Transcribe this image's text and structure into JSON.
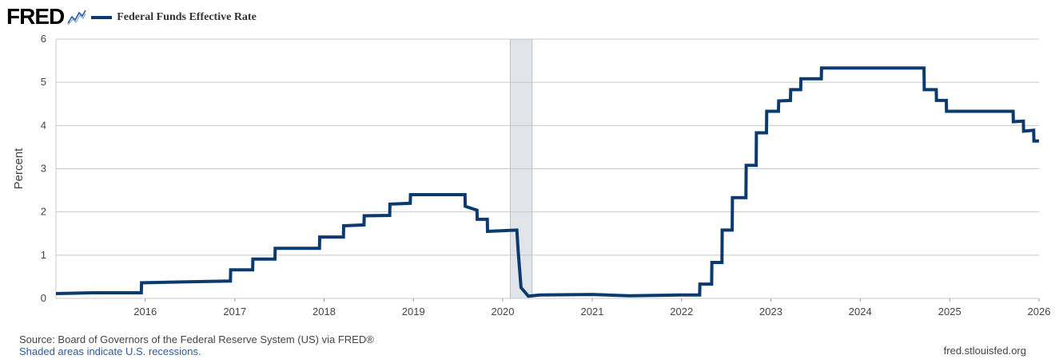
{
  "header": {
    "logo": "FRED",
    "logo_icon": "line-chart-icon"
  },
  "colors": {
    "series": "#0b3b6e",
    "grid": "#c8c8c8",
    "recession": "#e1e5e9",
    "axis_text": "#444444"
  },
  "chart_data": {
    "type": "line",
    "title": "",
    "xlabel": "",
    "ylabel": "Percent",
    "xlim": [
      "2015-01-01",
      "2026-01-01"
    ],
    "ylim": [
      0,
      6
    ],
    "yticks": [
      0,
      1,
      2,
      3,
      4,
      5,
      6
    ],
    "xticks": [
      "2016",
      "2017",
      "2018",
      "2019",
      "2020",
      "2021",
      "2022",
      "2023",
      "2024",
      "2025",
      "2026"
    ],
    "grid": true,
    "legend": "top-left",
    "recessions": [
      {
        "start": "2020-02-01",
        "end": "2020-04-30"
      }
    ],
    "series": [
      {
        "name": "Federal Funds Effective Rate",
        "points": [
          [
            "2015-01-01",
            0.11
          ],
          [
            "2015-06-01",
            0.13
          ],
          [
            "2015-12-16",
            0.13
          ],
          [
            "2015-12-17",
            0.36
          ],
          [
            "2016-06-01",
            0.38
          ],
          [
            "2016-12-14",
            0.4
          ],
          [
            "2016-12-15",
            0.66
          ],
          [
            "2017-03-15",
            0.66
          ],
          [
            "2017-03-16",
            0.91
          ],
          [
            "2017-06-14",
            0.91
          ],
          [
            "2017-06-15",
            1.16
          ],
          [
            "2017-12-13",
            1.16
          ],
          [
            "2017-12-14",
            1.42
          ],
          [
            "2018-03-21",
            1.42
          ],
          [
            "2018-03-22",
            1.68
          ],
          [
            "2018-06-13",
            1.7
          ],
          [
            "2018-06-14",
            1.91
          ],
          [
            "2018-09-26",
            1.92
          ],
          [
            "2018-09-27",
            2.18
          ],
          [
            "2018-12-19",
            2.2
          ],
          [
            "2018-12-20",
            2.4
          ],
          [
            "2019-07-31",
            2.4
          ],
          [
            "2019-08-01",
            2.13
          ],
          [
            "2019-09-18",
            2.04
          ],
          [
            "2019-09-19",
            1.83
          ],
          [
            "2019-10-30",
            1.83
          ],
          [
            "2019-10-31",
            1.55
          ],
          [
            "2020-02-28",
            1.58
          ],
          [
            "2020-03-04",
            1.1
          ],
          [
            "2020-03-16",
            0.25
          ],
          [
            "2020-04-15",
            0.05
          ],
          [
            "2020-06-01",
            0.08
          ],
          [
            "2020-12-31",
            0.09
          ],
          [
            "2021-06-01",
            0.06
          ],
          [
            "2021-12-31",
            0.08
          ],
          [
            "2022-03-16",
            0.08
          ],
          [
            "2022-03-17",
            0.33
          ],
          [
            "2022-05-04",
            0.33
          ],
          [
            "2022-05-05",
            0.83
          ],
          [
            "2022-06-15",
            0.83
          ],
          [
            "2022-06-16",
            1.58
          ],
          [
            "2022-07-27",
            1.58
          ],
          [
            "2022-07-28",
            2.33
          ],
          [
            "2022-09-21",
            2.33
          ],
          [
            "2022-09-22",
            3.08
          ],
          [
            "2022-11-02",
            3.08
          ],
          [
            "2022-11-03",
            3.83
          ],
          [
            "2022-12-14",
            3.83
          ],
          [
            "2022-12-15",
            4.33
          ],
          [
            "2023-02-01",
            4.33
          ],
          [
            "2023-02-02",
            4.57
          ],
          [
            "2023-03-22",
            4.58
          ],
          [
            "2023-03-23",
            4.83
          ],
          [
            "2023-05-03",
            4.83
          ],
          [
            "2023-05-04",
            5.08
          ],
          [
            "2023-07-26",
            5.08
          ],
          [
            "2023-07-27",
            5.33
          ],
          [
            "2024-09-18",
            5.33
          ],
          [
            "2024-09-19",
            4.83
          ],
          [
            "2024-11-07",
            4.83
          ],
          [
            "2024-11-08",
            4.58
          ],
          [
            "2024-12-18",
            4.58
          ],
          [
            "2024-12-19",
            4.33
          ],
          [
            "2025-09-17",
            4.33
          ],
          [
            "2025-09-18",
            4.09
          ],
          [
            "2025-10-29",
            4.1
          ],
          [
            "2025-10-30",
            3.87
          ],
          [
            "2025-12-10",
            3.89
          ],
          [
            "2025-12-11",
            3.64
          ],
          [
            "2026-01-01",
            3.64
          ]
        ]
      }
    ]
  },
  "footer": {
    "source": "Source: Board of Governors of the Federal Reserve System (US) via FRED®",
    "shading_note": "Shaded areas indicate U.S. recessions.",
    "site": "fred.stlouisfed.org"
  }
}
